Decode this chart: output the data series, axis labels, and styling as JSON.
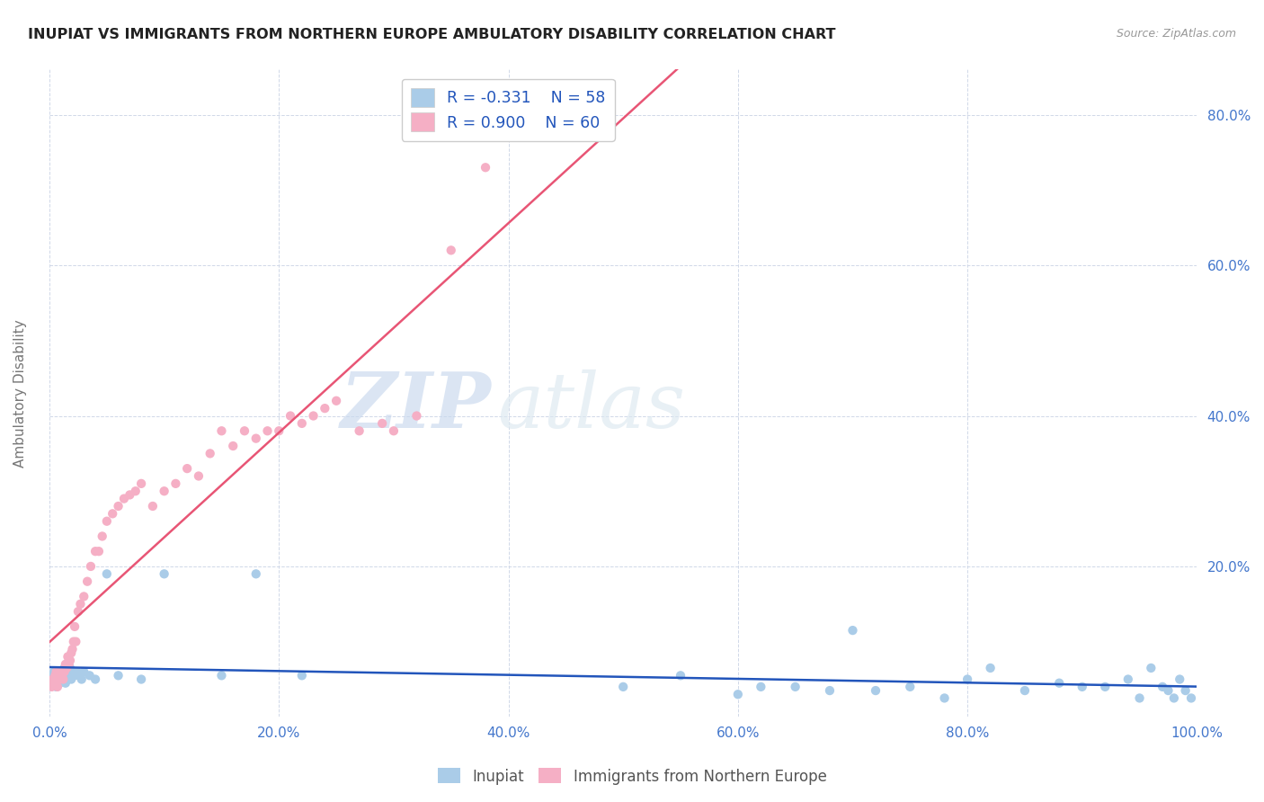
{
  "title": "INUPIAT VS IMMIGRANTS FROM NORTHERN EUROPE AMBULATORY DISABILITY CORRELATION CHART",
  "source": "Source: ZipAtlas.com",
  "ylabel": "Ambulatory Disability",
  "xlim": [
    0.0,
    1.0
  ],
  "ylim": [
    0.0,
    0.86
  ],
  "x_tick_labels": [
    "0.0%",
    "20.0%",
    "40.0%",
    "60.0%",
    "80.0%",
    "100.0%"
  ],
  "x_tick_vals": [
    0.0,
    0.2,
    0.4,
    0.6,
    0.8,
    1.0
  ],
  "y_tick_labels": [
    "20.0%",
    "40.0%",
    "60.0%",
    "80.0%"
  ],
  "y_tick_vals": [
    0.2,
    0.4,
    0.6,
    0.8
  ],
  "legend_labels": [
    "Inupiat",
    "Immigrants from Northern Europe"
  ],
  "inupiat_color": "#aacce8",
  "immigrants_color": "#f5afc5",
  "inupiat_line_color": "#2255bb",
  "immigrants_line_color": "#e85575",
  "inupiat_R": -0.331,
  "inupiat_N": 58,
  "immigrants_R": 0.9,
  "immigrants_N": 60,
  "legend_text_color": "#2255bb",
  "tick_color": "#4477cc",
  "ylabel_color": "#777777",
  "watermark_zip": "ZIP",
  "watermark_atlas": "atlas",
  "background_color": "#ffffff",
  "inupiat_x": [
    0.002,
    0.004,
    0.005,
    0.006,
    0.007,
    0.008,
    0.009,
    0.01,
    0.011,
    0.012,
    0.013,
    0.014,
    0.015,
    0.016,
    0.017,
    0.018,
    0.019,
    0.02,
    0.021,
    0.022,
    0.024,
    0.026,
    0.028,
    0.03,
    0.035,
    0.04,
    0.05,
    0.06,
    0.08,
    0.1,
    0.15,
    0.18,
    0.22,
    0.5,
    0.55,
    0.6,
    0.62,
    0.65,
    0.68,
    0.7,
    0.72,
    0.75,
    0.78,
    0.8,
    0.82,
    0.85,
    0.88,
    0.9,
    0.92,
    0.94,
    0.95,
    0.96,
    0.97,
    0.975,
    0.98,
    0.985,
    0.99,
    0.995
  ],
  "inupiat_y": [
    0.055,
    0.06,
    0.05,
    0.04,
    0.055,
    0.05,
    0.045,
    0.06,
    0.05,
    0.055,
    0.065,
    0.045,
    0.055,
    0.05,
    0.06,
    0.065,
    0.05,
    0.055,
    0.06,
    0.055,
    0.06,
    0.055,
    0.05,
    0.06,
    0.055,
    0.05,
    0.19,
    0.055,
    0.05,
    0.19,
    0.055,
    0.19,
    0.055,
    0.04,
    0.055,
    0.03,
    0.04,
    0.04,
    0.035,
    0.115,
    0.035,
    0.04,
    0.025,
    0.05,
    0.065,
    0.035,
    0.045,
    0.04,
    0.04,
    0.05,
    0.025,
    0.065,
    0.04,
    0.035,
    0.025,
    0.05,
    0.035,
    0.025
  ],
  "immigrants_x": [
    0.002,
    0.003,
    0.004,
    0.005,
    0.006,
    0.007,
    0.008,
    0.009,
    0.01,
    0.011,
    0.012,
    0.013,
    0.014,
    0.015,
    0.016,
    0.017,
    0.018,
    0.019,
    0.02,
    0.021,
    0.022,
    0.023,
    0.025,
    0.027,
    0.03,
    0.033,
    0.036,
    0.04,
    0.043,
    0.046,
    0.05,
    0.055,
    0.06,
    0.065,
    0.07,
    0.075,
    0.08,
    0.09,
    0.1,
    0.11,
    0.12,
    0.13,
    0.14,
    0.15,
    0.16,
    0.17,
    0.18,
    0.19,
    0.2,
    0.21,
    0.22,
    0.23,
    0.24,
    0.25,
    0.27,
    0.29,
    0.3,
    0.32,
    0.35,
    0.38
  ],
  "immigrants_y": [
    0.04,
    0.05,
    0.045,
    0.055,
    0.06,
    0.04,
    0.055,
    0.05,
    0.06,
    0.055,
    0.05,
    0.06,
    0.07,
    0.065,
    0.08,
    0.07,
    0.075,
    0.085,
    0.09,
    0.1,
    0.12,
    0.1,
    0.14,
    0.15,
    0.16,
    0.18,
    0.2,
    0.22,
    0.22,
    0.24,
    0.26,
    0.27,
    0.28,
    0.29,
    0.295,
    0.3,
    0.31,
    0.28,
    0.3,
    0.31,
    0.33,
    0.32,
    0.35,
    0.38,
    0.36,
    0.38,
    0.37,
    0.38,
    0.38,
    0.4,
    0.39,
    0.4,
    0.41,
    0.42,
    0.38,
    0.39,
    0.38,
    0.4,
    0.62,
    0.73
  ],
  "trendline_x_start": 0.0,
  "trendline_x_end": 1.0
}
